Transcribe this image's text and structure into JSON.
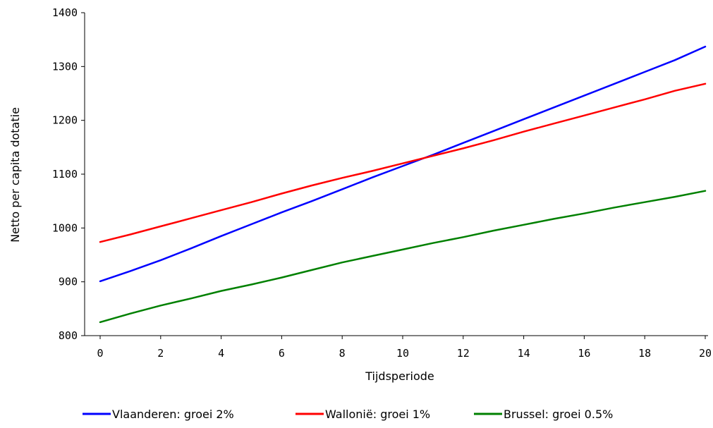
{
  "chart_data": {
    "type": "line",
    "title": "",
    "xlabel": "Tijdsperiode",
    "ylabel": "Netto per capita dotatie",
    "xlim": [
      0,
      20
    ],
    "ylim": [
      800,
      1400
    ],
    "xticks": [
      0,
      2,
      4,
      6,
      8,
      10,
      12,
      14,
      16,
      18,
      20
    ],
    "yticks": [
      800,
      900,
      1000,
      1100,
      1200,
      1300,
      1400
    ],
    "grid": false,
    "legend_position": "bottom",
    "x": [
      0,
      1,
      2,
      3,
      4,
      5,
      6,
      7,
      8,
      9,
      10,
      11,
      12,
      13,
      14,
      15,
      16,
      17,
      18,
      19,
      20
    ],
    "series": [
      {
        "name": "Vlaanderen: groei 2%",
        "color": "#0000ff",
        "values": [
          901,
          920,
          940,
          962,
          985,
          1007,
          1029,
          1050,
          1072,
          1094,
          1115,
          1136,
          1158,
          1180,
          1202,
          1224,
          1246,
          1268,
          1290,
          1312,
          1337
        ]
      },
      {
        "name": "Wallonië: groei 1%",
        "color": "#ff0000",
        "values": [
          974,
          988,
          1003,
          1018,
          1033,
          1048,
          1064,
          1079,
          1093,
          1106,
          1120,
          1134,
          1148,
          1163,
          1179,
          1194,
          1209,
          1224,
          1239,
          1255,
          1268
        ]
      },
      {
        "name": "Brussel: groei 0.5%",
        "color": "#008000",
        "values": [
          825,
          841,
          856,
          869,
          883,
          895,
          908,
          922,
          936,
          948,
          960,
          972,
          983,
          995,
          1006,
          1017,
          1027,
          1038,
          1048,
          1058,
          1069
        ]
      }
    ]
  }
}
